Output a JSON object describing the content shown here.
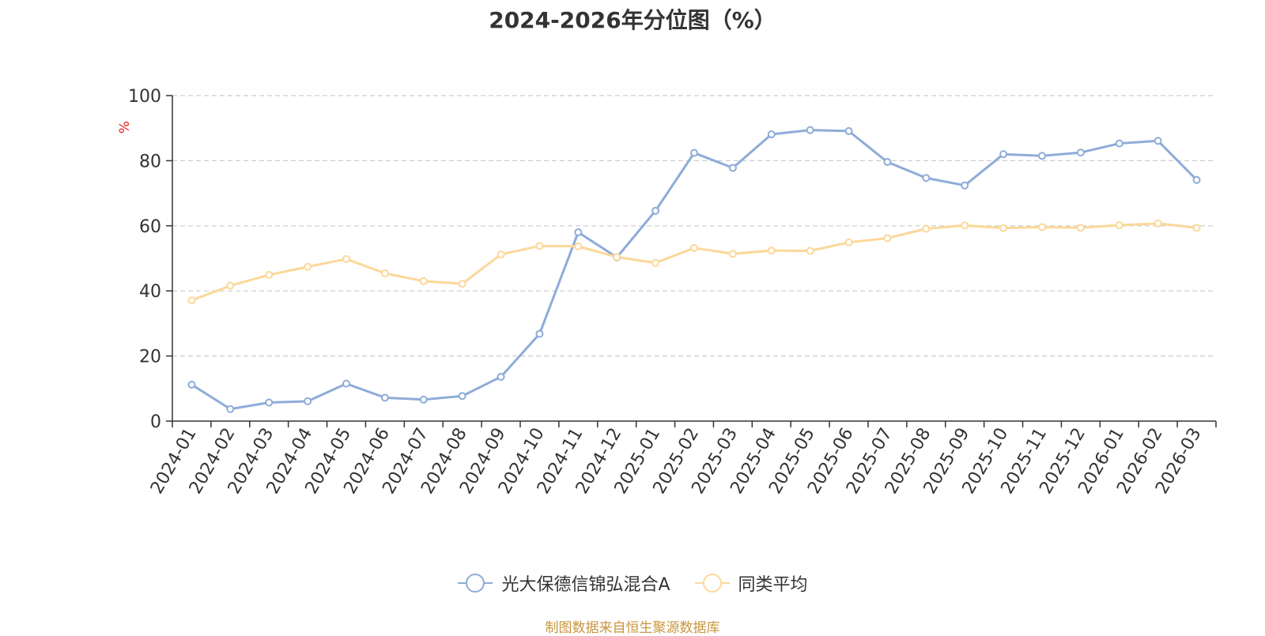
{
  "chart_data": {
    "type": "line",
    "title": "2024-2026年分位图（%）",
    "ylabel": "%",
    "ylim": [
      0,
      100
    ],
    "yticks": [
      0,
      20,
      40,
      60,
      80,
      100
    ],
    "grid": true,
    "legend_position": "bottom",
    "categories": [
      "2024-01",
      "2024-02",
      "2024-03",
      "2024-04",
      "2024-05",
      "2024-06",
      "2024-07",
      "2024-08",
      "2024-09",
      "2024-10",
      "2024-11",
      "2024-12",
      "2025-01",
      "2025-02",
      "2025-03",
      "2025-04",
      "2025-05",
      "2025-06",
      "2025-07",
      "2025-08",
      "2025-09",
      "2025-10",
      "2025-11",
      "2025-12",
      "2026-01",
      "2026-02",
      "2026-03"
    ],
    "series": [
      {
        "name": "光大保德信锦弘混合A",
        "color": "#8eacd8",
        "values": [
          11.2,
          3.7,
          5.7,
          6.1,
          11.5,
          7.2,
          6.6,
          7.7,
          13.6,
          26.8,
          58.0,
          50.3,
          64.6,
          82.4,
          77.8,
          88.1,
          89.4,
          89.1,
          79.6,
          74.7,
          72.4,
          82.0,
          81.5,
          82.5,
          85.3,
          86.1,
          74.1
        ]
      },
      {
        "name": "同类平均",
        "color": "#fbd899",
        "values": [
          37.1,
          41.6,
          44.9,
          47.4,
          49.8,
          45.4,
          43.0,
          42.2,
          51.2,
          53.8,
          53.7,
          50.4,
          48.6,
          53.2,
          51.4,
          52.4,
          52.3,
          54.9,
          56.2,
          59.1,
          60.1,
          59.3,
          59.6,
          59.4,
          60.2,
          60.7,
          59.4
        ]
      }
    ]
  },
  "source_text": "制图数据来自恒生聚源数据库"
}
